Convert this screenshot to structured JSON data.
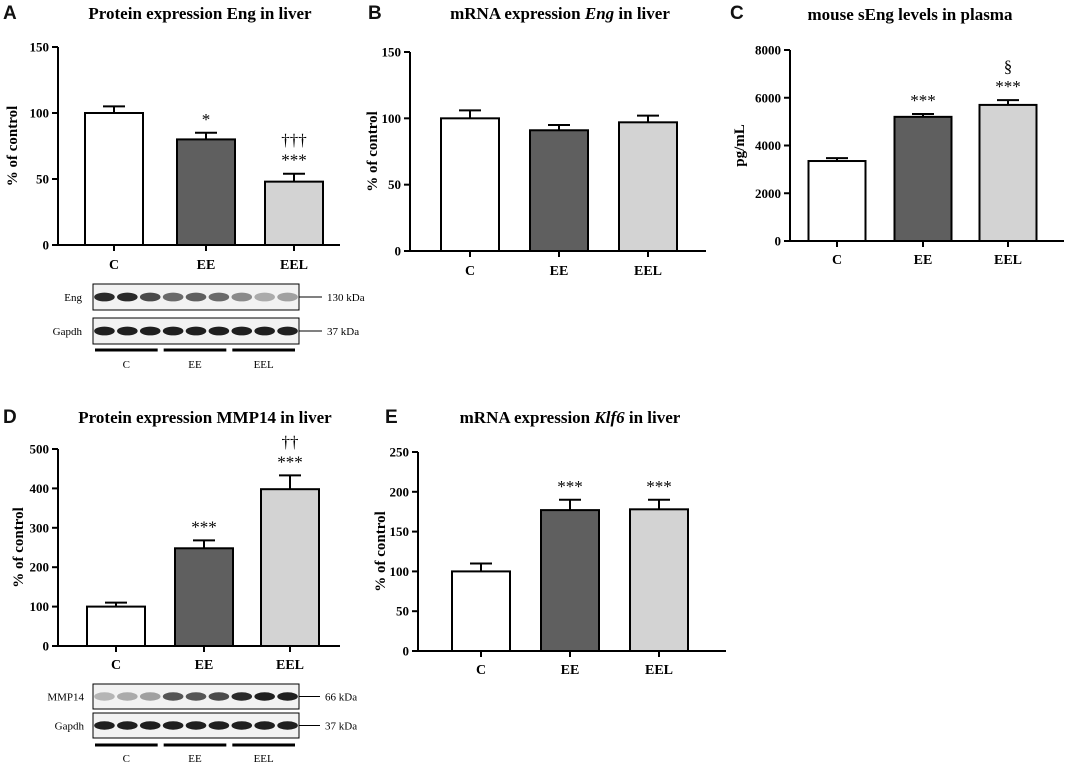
{
  "panels": {
    "A": "A",
    "B": "B",
    "C": "C",
    "D": "D",
    "E": "E"
  },
  "chart_data": [
    {
      "id": "A",
      "type": "bar",
      "title": "Protein expression Eng in liver",
      "title_parts": [
        {
          "text": "Protein expression Eng in liver",
          "italic": false
        }
      ],
      "xlabel": "",
      "ylabel": "% of control",
      "categories": [
        "C",
        "EE",
        "EEL"
      ],
      "values": [
        100,
        80,
        48
      ],
      "errors": [
        5,
        5,
        6
      ],
      "annotations": [
        "",
        "*",
        "†††\n***"
      ],
      "colors": [
        "#ffffff",
        "#5f5f5f",
        "#d3d3d3"
      ],
      "ylim": [
        0,
        150
      ],
      "yticks": [
        0,
        50,
        100,
        150
      ]
    },
    {
      "id": "B",
      "type": "bar",
      "title": "mRNA expression Eng in liver",
      "title_parts": [
        {
          "text": "mRNA expression ",
          "italic": false
        },
        {
          "text": "Eng",
          "italic": true
        },
        {
          "text": " in liver",
          "italic": false
        }
      ],
      "xlabel": "",
      "ylabel": "% of control",
      "categories": [
        "C",
        "EE",
        "EEL"
      ],
      "values": [
        100,
        91,
        97
      ],
      "errors": [
        6,
        4,
        5
      ],
      "annotations": [
        "",
        "",
        ""
      ],
      "colors": [
        "#ffffff",
        "#5f5f5f",
        "#d3d3d3"
      ],
      "ylim": [
        0,
        150
      ],
      "yticks": [
        0,
        50,
        100,
        150
      ]
    },
    {
      "id": "C",
      "type": "bar",
      "title": "mouse sEng levels in plasma",
      "title_parts": [
        {
          "text": "mouse sEng levels in plasma",
          "italic": false
        }
      ],
      "xlabel": "",
      "ylabel": "pg/mL",
      "categories": [
        "C",
        "EE",
        "EEL"
      ],
      "values": [
        3350,
        5200,
        5700
      ],
      "errors": [
        120,
        120,
        200
      ],
      "annotations": [
        "",
        "***",
        "§\n***"
      ],
      "colors": [
        "#ffffff",
        "#5f5f5f",
        "#d3d3d3"
      ],
      "ylim": [
        0,
        8000
      ],
      "yticks": [
        0,
        2000,
        4000,
        6000,
        8000
      ]
    },
    {
      "id": "D",
      "type": "bar",
      "title": "Protein expression MMP14 in liver",
      "title_parts": [
        {
          "text": "Protein expression MMP14 in liver",
          "italic": false
        }
      ],
      "xlabel": "",
      "ylabel": "% of control",
      "categories": [
        "C",
        "EE",
        "EEL"
      ],
      "values": [
        100,
        248,
        398
      ],
      "errors": [
        10,
        20,
        35
      ],
      "annotations": [
        "",
        "***",
        "††\n***"
      ],
      "colors": [
        "#ffffff",
        "#5f5f5f",
        "#d3d3d3"
      ],
      "ylim": [
        0,
        500
      ],
      "yticks": [
        0,
        100,
        200,
        300,
        400,
        500
      ]
    },
    {
      "id": "E",
      "type": "bar",
      "title": "mRNA expression Klf6 in liver",
      "title_parts": [
        {
          "text": "mRNA expression ",
          "italic": false
        },
        {
          "text": "Klf6",
          "italic": true
        },
        {
          "text": " in liver",
          "italic": false
        }
      ],
      "xlabel": "",
      "ylabel": "% of control",
      "categories": [
        "C",
        "EE",
        "EEL"
      ],
      "values": [
        100,
        177,
        178
      ],
      "errors": [
        10,
        13,
        12
      ],
      "annotations": [
        "",
        "***",
        "***"
      ],
      "colors": [
        "#ffffff",
        "#5f5f5f",
        "#d3d3d3"
      ],
      "ylim": [
        0,
        250
      ],
      "yticks": [
        0,
        50,
        100,
        150,
        200,
        250
      ]
    }
  ],
  "blots": [
    {
      "id": "A",
      "rows": [
        {
          "label": "Eng",
          "kda": "130 kDa",
          "intensity": [
            0.9,
            0.9,
            0.75,
            0.6,
            0.65,
            0.6,
            0.45,
            0.3,
            0.35
          ]
        },
        {
          "label": "Gapdh",
          "kda": "37 kDa",
          "intensity": [
            0.95,
            0.95,
            0.95,
            0.95,
            0.95,
            0.95,
            0.95,
            0.95,
            0.95
          ]
        }
      ],
      "groups": [
        "C",
        "EE",
        "EEL"
      ]
    },
    {
      "id": "D",
      "rows": [
        {
          "label": "MMP14",
          "kda": "66 kDa",
          "intensity": [
            0.25,
            0.3,
            0.35,
            0.7,
            0.7,
            0.75,
            0.9,
            0.95,
            0.95
          ]
        },
        {
          "label": "Gapdh",
          "kda": "37 kDa",
          "intensity": [
            0.95,
            0.95,
            0.95,
            0.95,
            0.95,
            0.95,
            0.95,
            0.95,
            0.95
          ]
        }
      ],
      "groups": [
        "C",
        "EE",
        "EEL"
      ]
    }
  ]
}
